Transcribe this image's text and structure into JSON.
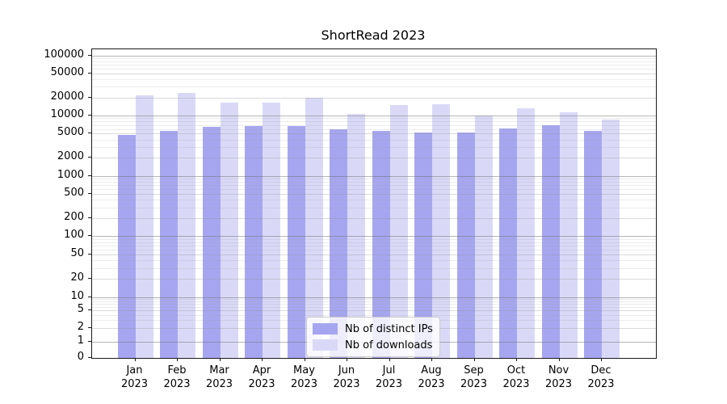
{
  "title": "ShortRead 2023",
  "chart_data": {
    "type": "bar",
    "title": "ShortRead 2023",
    "categories": [
      "Jan 2023",
      "Feb 2023",
      "Mar 2023",
      "Apr 2023",
      "May 2023",
      "Jun 2023",
      "Jul 2023",
      "Aug 2023",
      "Sep 2023",
      "Oct 2023",
      "Nov 2023",
      "Dec 2023"
    ],
    "x_tick_months": [
      "Jan",
      "Feb",
      "Mar",
      "Apr",
      "May",
      "Jun",
      "Jul",
      "Aug",
      "Sep",
      "Oct",
      "Nov",
      "Dec"
    ],
    "x_tick_year": "2023",
    "series": [
      {
        "name": "Nb of distinct IPs",
        "color": "#a6a6f0",
        "values": [
          4800,
          5500,
          6500,
          6700,
          6800,
          6000,
          5500,
          5200,
          5300,
          6200,
          7000,
          5500
        ]
      },
      {
        "name": "Nb of downloads",
        "color": "#d9d9f7",
        "values": [
          21500,
          24000,
          16300,
          16500,
          19800,
          10700,
          15000,
          15500,
          9900,
          13300,
          11200,
          8500
        ]
      }
    ],
    "yscale": "symlog",
    "y_ticks": [
      100000,
      50000,
      20000,
      10000,
      5000,
      2000,
      1000,
      500,
      200,
      100,
      50,
      20,
      10,
      5,
      2,
      1,
      0
    ],
    "ylim": [
      0,
      130000
    ],
    "grid": true,
    "legend_position": "lower center",
    "colors": {
      "axis": "#1a1a1a",
      "bar_ips": "#a6a6f0",
      "bar_downloads": "#d9d9f7",
      "legend_border": "#cccccc"
    }
  }
}
